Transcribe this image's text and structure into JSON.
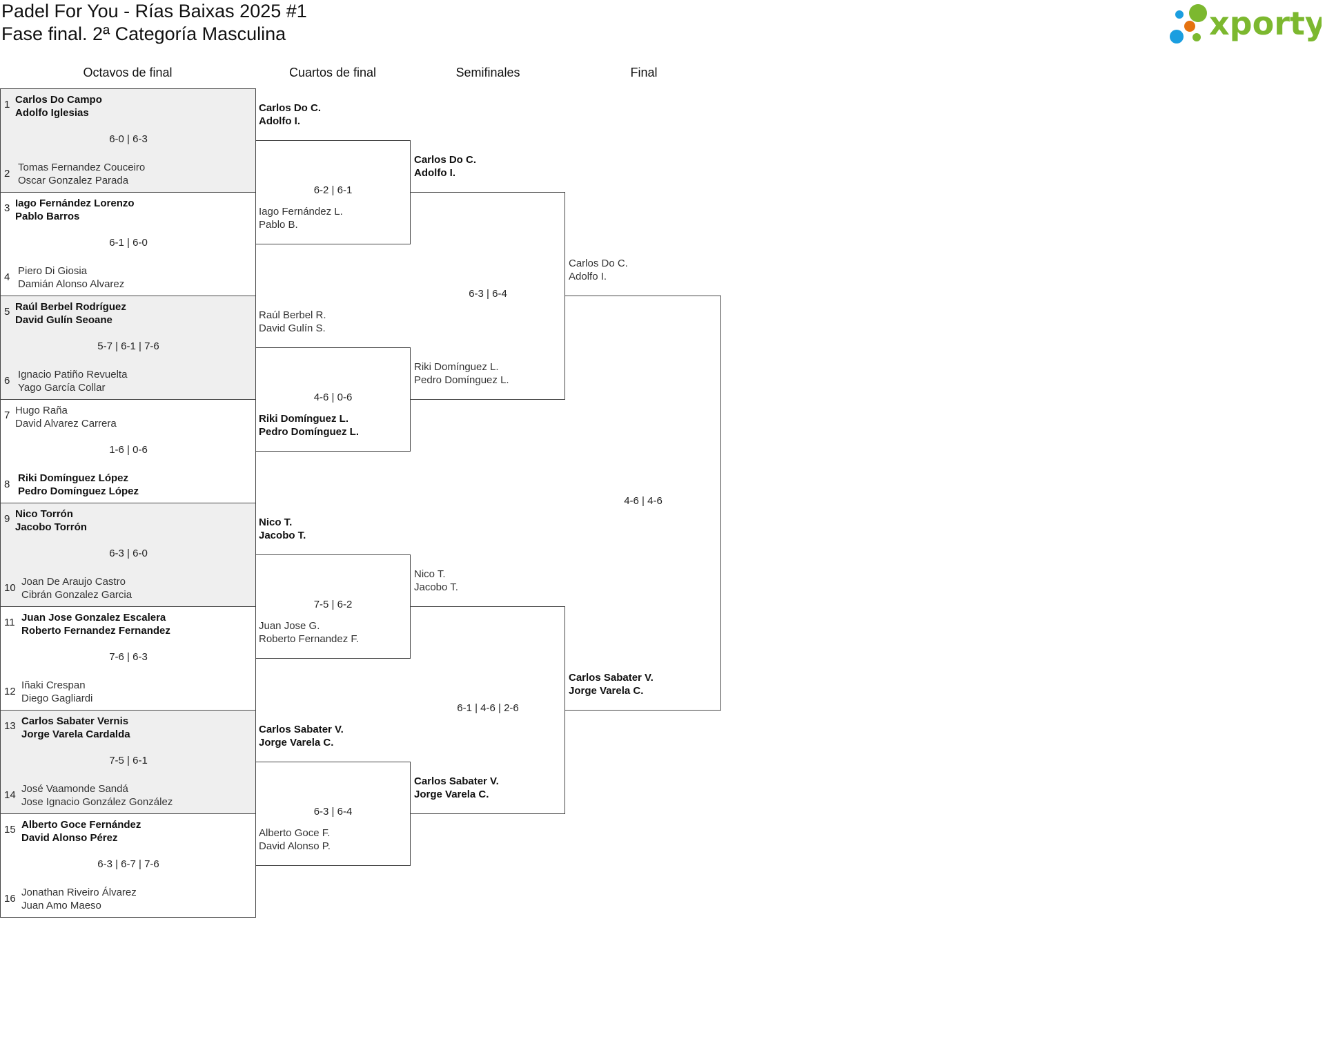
{
  "header": {
    "title": "Padel For You - Rías Baixas 2025 #1",
    "subtitle": "Fase final. 2ª Categoría Masculina",
    "logo_text": "xporty"
  },
  "colors": {
    "logo_green": "#7cb82f",
    "logo_blue": "#1a9ee0",
    "logo_orange": "#e5720f",
    "shade": "#efefef"
  },
  "rounds": [
    {
      "label": "Octavos de final"
    },
    {
      "label": "Cuartos de final"
    },
    {
      "label": "Semifinales"
    },
    {
      "label": "Final"
    }
  ],
  "octavos": [
    {
      "seed1": "1",
      "team1": [
        "Carlos Do Campo",
        "Adolfo Iglesias"
      ],
      "seed2": "2",
      "team2": [
        "Tomas Fernandez Couceiro",
        "Oscar Gonzalez Parada"
      ],
      "score": "6-0 | 6-3",
      "winner": 1
    },
    {
      "seed1": "3",
      "team1": [
        "Iago Fernández Lorenzo",
        "Pablo Barros"
      ],
      "seed2": "4",
      "team2": [
        "Piero Di Giosia",
        "Damián Alonso Alvarez"
      ],
      "score": "6-1 | 6-0",
      "winner": 1
    },
    {
      "seed1": "5",
      "team1": [
        "Raúl Berbel Rodríguez",
        "David Gulín Seoane"
      ],
      "seed2": "6",
      "team2": [
        "Ignacio Patiño Revuelta",
        "Yago García Collar"
      ],
      "score": "5-7 | 6-1 | 7-6",
      "winner": 1
    },
    {
      "seed1": "7",
      "team1": [
        "Hugo Raña",
        "David Alvarez Carrera"
      ],
      "seed2": "8",
      "team2": [
        "Riki Domínguez López",
        "Pedro Domínguez López"
      ],
      "score": "1-6 | 0-6",
      "winner": 2
    },
    {
      "seed1": "9",
      "team1": [
        "Nico Torrón",
        "Jacobo Torrón"
      ],
      "seed2": "10",
      "team2": [
        "Joan De Araujo Castro",
        "Cibrán Gonzalez Garcia"
      ],
      "score": "6-3 | 6-0",
      "winner": 1
    },
    {
      "seed1": "11",
      "team1": [
        "Juan Jose Gonzalez Escalera",
        "Roberto Fernandez Fernandez"
      ],
      "seed2": "12",
      "team2": [
        "Iñaki Crespan",
        "Diego Gagliardi"
      ],
      "score": "7-6 | 6-3",
      "winner": 1
    },
    {
      "seed1": "13",
      "team1": [
        "Carlos Sabater Vernis",
        "Jorge Varela Cardalda"
      ],
      "seed2": "14",
      "team2": [
        "José Vaamonde Sandá",
        "Jose Ignacio González González"
      ],
      "score": "7-5 | 6-1",
      "winner": 1
    },
    {
      "seed1": "15",
      "team1": [
        "Alberto Goce Fernández",
        "David Alonso Pérez"
      ],
      "seed2": "16",
      "team2": [
        "Jonathan Riveiro Álvarez",
        "Juan Amo Maeso"
      ],
      "score": "6-3 | 6-7 | 7-6",
      "winner": 1
    }
  ],
  "cuartos": [
    {
      "team1": [
        "Carlos Do C.",
        "Adolfo I."
      ],
      "team2": [
        "Iago Fernández L.",
        "Pablo B."
      ],
      "score": "6-2 | 6-1",
      "winner": 1
    },
    {
      "team1": [
        "Raúl Berbel R.",
        "David Gulín S."
      ],
      "team2": [
        "Riki Domínguez L.",
        "Pedro Domínguez L."
      ],
      "score": "4-6 | 0-6",
      "winner": 2
    },
    {
      "team1": [
        "Nico T.",
        "Jacobo T."
      ],
      "team2": [
        "Juan Jose G.",
        "Roberto Fernandez F."
      ],
      "score": "7-5 | 6-2",
      "winner": 1
    },
    {
      "team1": [
        "Carlos Sabater V.",
        "Jorge Varela C."
      ],
      "team2": [
        "Alberto Goce F.",
        "David Alonso P."
      ],
      "score": "6-3 | 6-4",
      "winner": 1
    }
  ],
  "semifinales": [
    {
      "team1": [
        "Carlos Do C.",
        "Adolfo I."
      ],
      "team2": [
        "Riki Domínguez L.",
        "Pedro Domínguez L."
      ],
      "score": "6-3 | 6-4",
      "winner": 1
    },
    {
      "team1": [
        "Nico T.",
        "Jacobo T."
      ],
      "team2": [
        "Carlos Sabater V.",
        "Jorge Varela C."
      ],
      "score": "6-1 | 4-6 | 2-6",
      "winner": 2
    }
  ],
  "final": [
    {
      "team1": [
        "Carlos Do C.",
        "Adolfo I."
      ],
      "team2": [
        "Carlos Sabater V.",
        "Jorge Varela C."
      ],
      "score": "4-6 | 4-6",
      "winner": 2
    }
  ]
}
